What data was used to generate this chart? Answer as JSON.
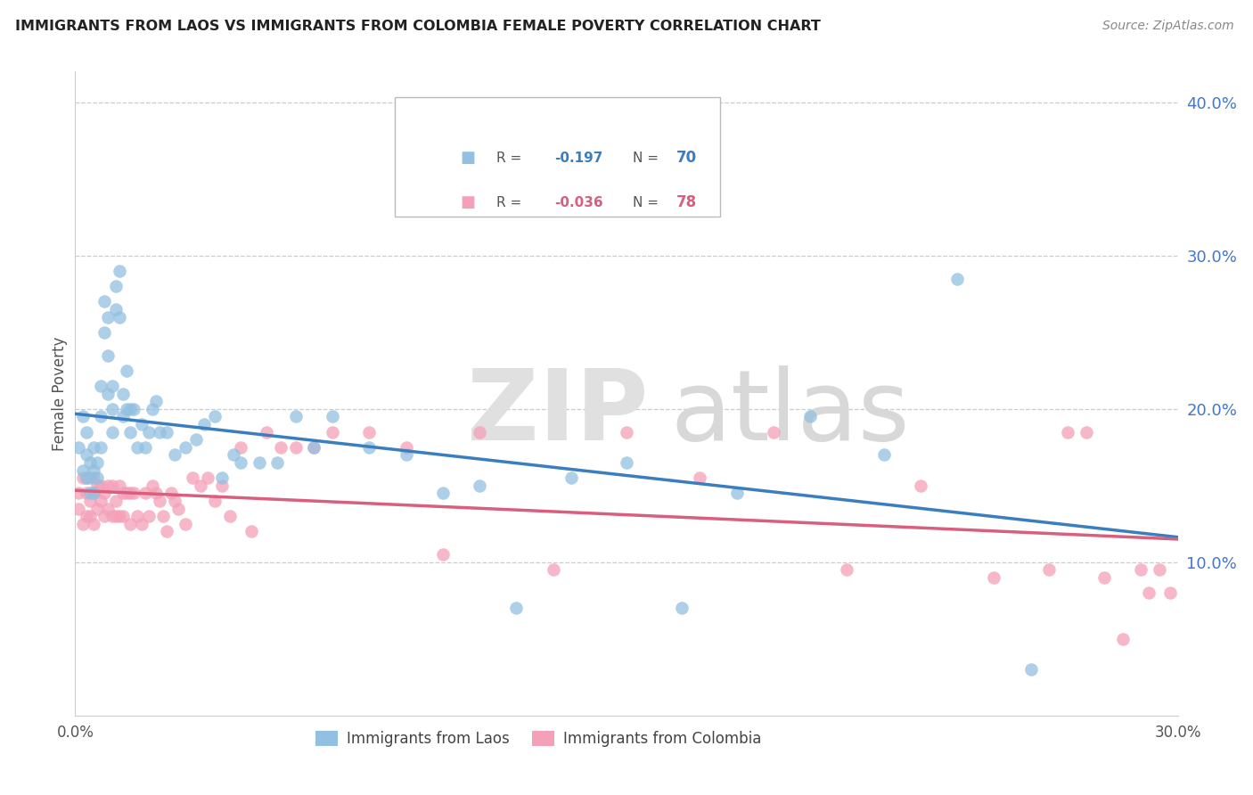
{
  "title": "IMMIGRANTS FROM LAOS VS IMMIGRANTS FROM COLOMBIA FEMALE POVERTY CORRELATION CHART",
  "source": "Source: ZipAtlas.com",
  "ylabel": "Female Poverty",
  "xlim": [
    0.0,
    0.3
  ],
  "ylim": [
    0.0,
    0.42
  ],
  "y_ticks": [
    0.1,
    0.2,
    0.3,
    0.4
  ],
  "y_tick_labels": [
    "10.0%",
    "20.0%",
    "30.0%",
    "40.0%"
  ],
  "x_ticks": [
    0.0,
    0.1,
    0.2,
    0.3
  ],
  "x_tick_labels": [
    "0.0%",
    "",
    "",
    "30.0%"
  ],
  "laos_R": -0.197,
  "laos_N": 70,
  "colombia_R": -0.036,
  "colombia_N": 78,
  "laos_color": "#92c0e0",
  "colombia_color": "#f4a0b8",
  "laos_line_color": "#3a7ebf",
  "colombia_line_color": "#d95f7f",
  "laos_x": [
    0.001,
    0.002,
    0.002,
    0.003,
    0.003,
    0.003,
    0.004,
    0.004,
    0.004,
    0.005,
    0.005,
    0.005,
    0.006,
    0.006,
    0.007,
    0.007,
    0.007,
    0.008,
    0.008,
    0.009,
    0.009,
    0.009,
    0.01,
    0.01,
    0.01,
    0.011,
    0.011,
    0.012,
    0.012,
    0.013,
    0.013,
    0.014,
    0.014,
    0.015,
    0.015,
    0.016,
    0.017,
    0.018,
    0.019,
    0.02,
    0.021,
    0.022,
    0.023,
    0.025,
    0.027,
    0.03,
    0.033,
    0.035,
    0.038,
    0.04,
    0.043,
    0.045,
    0.05,
    0.055,
    0.06,
    0.065,
    0.07,
    0.08,
    0.09,
    0.1,
    0.11,
    0.12,
    0.135,
    0.15,
    0.165,
    0.18,
    0.2,
    0.22,
    0.24,
    0.26
  ],
  "laos_y": [
    0.175,
    0.195,
    0.16,
    0.155,
    0.17,
    0.185,
    0.155,
    0.165,
    0.145,
    0.16,
    0.175,
    0.145,
    0.165,
    0.155,
    0.195,
    0.215,
    0.175,
    0.25,
    0.27,
    0.26,
    0.235,
    0.21,
    0.2,
    0.215,
    0.185,
    0.265,
    0.28,
    0.29,
    0.26,
    0.21,
    0.195,
    0.225,
    0.2,
    0.2,
    0.185,
    0.2,
    0.175,
    0.19,
    0.175,
    0.185,
    0.2,
    0.205,
    0.185,
    0.185,
    0.17,
    0.175,
    0.18,
    0.19,
    0.195,
    0.155,
    0.17,
    0.165,
    0.165,
    0.165,
    0.195,
    0.175,
    0.195,
    0.175,
    0.17,
    0.145,
    0.15,
    0.07,
    0.155,
    0.165,
    0.07,
    0.145,
    0.195,
    0.17,
    0.285,
    0.03
  ],
  "colombia_x": [
    0.001,
    0.001,
    0.002,
    0.002,
    0.003,
    0.003,
    0.003,
    0.004,
    0.004,
    0.005,
    0.005,
    0.005,
    0.006,
    0.006,
    0.007,
    0.007,
    0.008,
    0.008,
    0.009,
    0.009,
    0.01,
    0.01,
    0.011,
    0.011,
    0.012,
    0.012,
    0.013,
    0.013,
    0.014,
    0.015,
    0.015,
    0.016,
    0.017,
    0.018,
    0.019,
    0.02,
    0.021,
    0.022,
    0.023,
    0.024,
    0.025,
    0.026,
    0.027,
    0.028,
    0.03,
    0.032,
    0.034,
    0.036,
    0.038,
    0.04,
    0.042,
    0.045,
    0.048,
    0.052,
    0.056,
    0.06,
    0.065,
    0.07,
    0.08,
    0.09,
    0.1,
    0.11,
    0.13,
    0.15,
    0.17,
    0.19,
    0.21,
    0.23,
    0.25,
    0.265,
    0.27,
    0.275,
    0.28,
    0.285,
    0.29,
    0.292,
    0.295,
    0.298
  ],
  "colombia_y": [
    0.145,
    0.135,
    0.155,
    0.125,
    0.145,
    0.13,
    0.155,
    0.14,
    0.13,
    0.145,
    0.125,
    0.155,
    0.135,
    0.15,
    0.14,
    0.15,
    0.13,
    0.145,
    0.135,
    0.15,
    0.13,
    0.15,
    0.14,
    0.13,
    0.15,
    0.13,
    0.145,
    0.13,
    0.145,
    0.125,
    0.145,
    0.145,
    0.13,
    0.125,
    0.145,
    0.13,
    0.15,
    0.145,
    0.14,
    0.13,
    0.12,
    0.145,
    0.14,
    0.135,
    0.125,
    0.155,
    0.15,
    0.155,
    0.14,
    0.15,
    0.13,
    0.175,
    0.12,
    0.185,
    0.175,
    0.175,
    0.175,
    0.185,
    0.185,
    0.175,
    0.105,
    0.185,
    0.095,
    0.185,
    0.155,
    0.185,
    0.095,
    0.15,
    0.09,
    0.095,
    0.185,
    0.185,
    0.09,
    0.05,
    0.095,
    0.08,
    0.095,
    0.08
  ]
}
